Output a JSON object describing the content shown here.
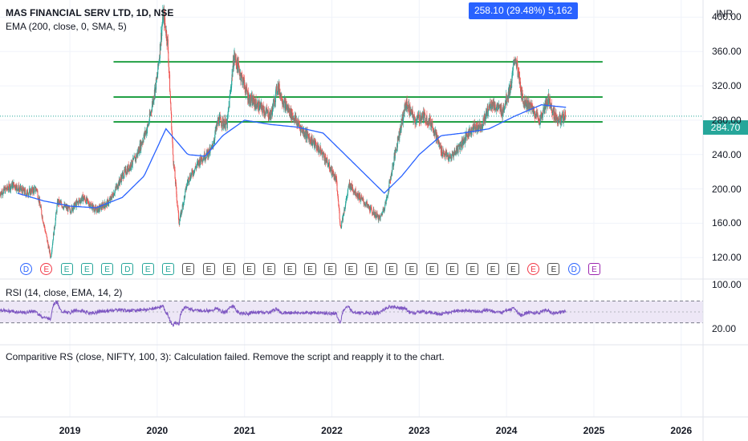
{
  "header": {
    "title": "MAS FINANCIAL SERV LTD, 1D, NSE",
    "ema_label": "EMA (200, close, 0, SMA, 5)",
    "measure": "258.10 (29.48%) 5,162",
    "currency": "INR",
    "last_price": "284.70"
  },
  "rsi": {
    "label": "RSI (14, close, EMA, 14, 2)",
    "ticks": [
      "100.00",
      "20.00"
    ]
  },
  "comparative_rs": {
    "message": "Comparitive RS (close, NIFTY, 100, 3): Calculation failed. Remove the script and reapply it to the chart."
  },
  "events": {
    "markers": [
      {
        "t": "D",
        "c": "blue"
      },
      {
        "t": "E",
        "c": "red"
      },
      {
        "t": "E",
        "c": "green"
      },
      {
        "t": "E",
        "c": "green"
      },
      {
        "t": "E",
        "c": "green"
      },
      {
        "t": "D",
        "c": "green"
      },
      {
        "t": "E",
        "c": "green"
      },
      {
        "t": "E",
        "c": "green"
      },
      {
        "t": "E",
        "c": "sq"
      },
      {
        "t": "E",
        "c": "sq"
      },
      {
        "t": "E",
        "c": "sq"
      },
      {
        "t": "E",
        "c": "sq"
      },
      {
        "t": "E",
        "c": "sq"
      },
      {
        "t": "E",
        "c": "sq"
      },
      {
        "t": "E",
        "c": "sq"
      },
      {
        "t": "E",
        "c": "sq"
      },
      {
        "t": "E",
        "c": "sq"
      },
      {
        "t": "E",
        "c": "sq"
      },
      {
        "t": "E",
        "c": "sq"
      },
      {
        "t": "E",
        "c": "sq"
      },
      {
        "t": "E",
        "c": "sq"
      },
      {
        "t": "E",
        "c": "sq"
      },
      {
        "t": "E",
        "c": "sq"
      },
      {
        "t": "E",
        "c": "sq"
      },
      {
        "t": "E",
        "c": "sq"
      },
      {
        "t": "E",
        "c": "red"
      },
      {
        "t": "E",
        "c": "sq"
      },
      {
        "t": "D",
        "c": "blue"
      },
      {
        "t": "E",
        "c": "purple"
      }
    ]
  },
  "colors": {
    "up": "#26a69a",
    "down": "#ef5350",
    "ema": "#2962ff",
    "support_lines": "#22a045",
    "rsi_line": "#7e57c2",
    "rsi_band": "#ede7f6"
  },
  "chart_data": {
    "type": "candlestick",
    "title": "MAS FINANCIAL SERV LTD, 1D, NSE",
    "ylim": [
      95,
      420
    ],
    "y_ticks": [
      120,
      160,
      200,
      240,
      280,
      320,
      360,
      400
    ],
    "y_tick_labels": [
      "120.00",
      "160.00",
      "200.00",
      "240.00",
      "280.00",
      "320.00",
      "360.00",
      "400.00"
    ],
    "x_ticks": [
      "2019",
      "2020",
      "2021",
      "2022",
      "2023",
      "2024",
      "2025",
      "2026"
    ],
    "x_tick_years": [
      2019,
      2020,
      2021,
      2022,
      2023,
      2024,
      2025,
      2026
    ],
    "x_range": [
      2018.2,
      2026.25
    ],
    "last_date": 2024.68,
    "horizontal_lines": [
      348,
      307,
      278
    ],
    "horizontal_lines_x": [
      2019.5,
      2025.1
    ],
    "price_anchors": [
      [
        2018.2,
        195
      ],
      [
        2018.35,
        205
      ],
      [
        2018.5,
        195
      ],
      [
        2018.62,
        200
      ],
      [
        2018.72,
        150
      ],
      [
        2018.78,
        120
      ],
      [
        2018.86,
        185
      ],
      [
        2019.0,
        175
      ],
      [
        2019.15,
        190
      ],
      [
        2019.3,
        175
      ],
      [
        2019.45,
        185
      ],
      [
        2019.6,
        215
      ],
      [
        2019.75,
        235
      ],
      [
        2019.9,
        275
      ],
      [
        2020.0,
        330
      ],
      [
        2020.07,
        405
      ],
      [
        2020.12,
        370
      ],
      [
        2020.18,
        240
      ],
      [
        2020.25,
        160
      ],
      [
        2020.35,
        210
      ],
      [
        2020.5,
        235
      ],
      [
        2020.62,
        245
      ],
      [
        2020.7,
        280
      ],
      [
        2020.8,
        275
      ],
      [
        2020.88,
        355
      ],
      [
        2020.95,
        335
      ],
      [
        2021.05,
        305
      ],
      [
        2021.18,
        295
      ],
      [
        2021.3,
        285
      ],
      [
        2021.38,
        320
      ],
      [
        2021.45,
        300
      ],
      [
        2021.55,
        285
      ],
      [
        2021.65,
        270
      ],
      [
        2021.78,
        255
      ],
      [
        2021.9,
        240
      ],
      [
        2022.05,
        210
      ],
      [
        2022.1,
        155
      ],
      [
        2022.2,
        205
      ],
      [
        2022.32,
        190
      ],
      [
        2022.45,
        175
      ],
      [
        2022.55,
        165
      ],
      [
        2022.62,
        185
      ],
      [
        2022.75,
        255
      ],
      [
        2022.85,
        300
      ],
      [
        2022.95,
        280
      ],
      [
        2023.05,
        285
      ],
      [
        2023.15,
        275
      ],
      [
        2023.25,
        245
      ],
      [
        2023.35,
        235
      ],
      [
        2023.5,
        255
      ],
      [
        2023.6,
        270
      ],
      [
        2023.72,
        275
      ],
      [
        2023.82,
        300
      ],
      [
        2023.95,
        290
      ],
      [
        2024.05,
        320
      ],
      [
        2024.1,
        355
      ],
      [
        2024.18,
        305
      ],
      [
        2024.28,
        295
      ],
      [
        2024.38,
        280
      ],
      [
        2024.48,
        305
      ],
      [
        2024.55,
        285
      ],
      [
        2024.62,
        280
      ],
      [
        2024.68,
        284.7
      ]
    ],
    "ema_anchors": [
      [
        2018.4,
        195
      ],
      [
        2018.7,
        186
      ],
      [
        2019.0,
        180
      ],
      [
        2019.3,
        178
      ],
      [
        2019.6,
        190
      ],
      [
        2019.85,
        215
      ],
      [
        2020.1,
        270
      ],
      [
        2020.35,
        240
      ],
      [
        2020.55,
        238
      ],
      [
        2020.75,
        262
      ],
      [
        2021.0,
        280
      ],
      [
        2021.3,
        275
      ],
      [
        2021.6,
        272
      ],
      [
        2021.9,
        265
      ],
      [
        2022.15,
        240
      ],
      [
        2022.4,
        215
      ],
      [
        2022.6,
        195
      ],
      [
        2022.8,
        215
      ],
      [
        2023.0,
        240
      ],
      [
        2023.25,
        262
      ],
      [
        2023.5,
        265
      ],
      [
        2023.8,
        270
      ],
      [
        2024.1,
        285
      ],
      [
        2024.4,
        298
      ],
      [
        2024.68,
        295
      ]
    ],
    "rsi_ticks": [
      100,
      20
    ],
    "rsi_ylim": [
      -10,
      110
    ],
    "rsi_bands": [
      70,
      50,
      30
    ],
    "rsi_current": 57
  }
}
